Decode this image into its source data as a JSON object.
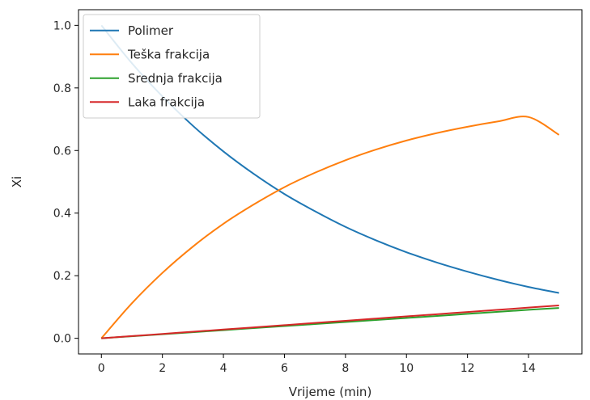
{
  "chart_data": {
    "type": "line",
    "xlabel": "Vrijeme (min)",
    "ylabel": "Xi",
    "xlim": [
      -0.75,
      15.75
    ],
    "ylim": [
      -0.05,
      1.05
    ],
    "xticks": [
      0,
      2,
      4,
      6,
      8,
      10,
      12,
      14
    ],
    "yticks": [
      0.0,
      0.2,
      0.4,
      0.6,
      0.8,
      1.0
    ],
    "xtick_labels": [
      "0",
      "2",
      "4",
      "6",
      "8",
      "10",
      "12",
      "14"
    ],
    "ytick_labels": [
      "0.0",
      "0.2",
      "0.4",
      "0.6",
      "0.8",
      "1.0"
    ],
    "grid": false,
    "legend_position": "top-left",
    "x": [
      0,
      1,
      2,
      3,
      4,
      5,
      6,
      7,
      8,
      9,
      10,
      11,
      12,
      13,
      14,
      15
    ],
    "series": [
      {
        "name": "Polimer",
        "color": "#1f77b4",
        "values": [
          1.0,
          0.879,
          0.773,
          0.679,
          0.597,
          0.525,
          0.461,
          0.406,
          0.356,
          0.313,
          0.275,
          0.242,
          0.213,
          0.187,
          0.164,
          0.145
        ]
      },
      {
        "name": "Teška frakcija",
        "color": "#ff7f0e",
        "values": [
          0.0,
          0.112,
          0.209,
          0.293,
          0.366,
          0.428,
          0.483,
          0.529,
          0.569,
          0.603,
          0.632,
          0.656,
          0.676,
          0.693,
          0.707,
          0.65
        ]
      },
      {
        "name": "Srednja frakcija",
        "color": "#2ca02c",
        "values": [
          0.0,
          0.0065,
          0.013,
          0.0195,
          0.026,
          0.0325,
          0.039,
          0.0455,
          0.052,
          0.0585,
          0.065,
          0.0715,
          0.078,
          0.0845,
          0.091,
          0.097
        ]
      },
      {
        "name": "Laka frakcija",
        "color": "#d62728",
        "values": [
          0.0,
          0.007,
          0.014,
          0.021,
          0.028,
          0.035,
          0.042,
          0.049,
          0.056,
          0.063,
          0.07,
          0.077,
          0.084,
          0.091,
          0.098,
          0.105
        ]
      }
    ]
  }
}
